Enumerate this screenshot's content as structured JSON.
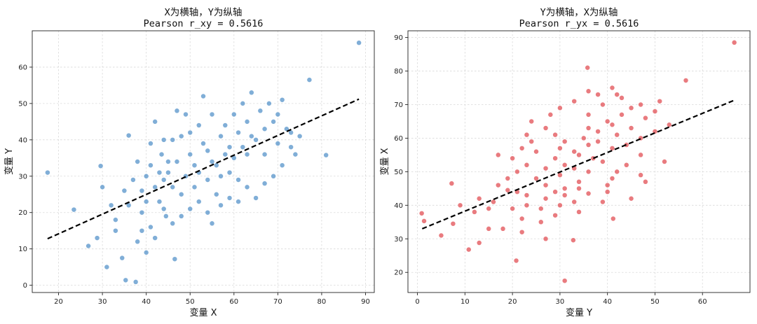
{
  "chart_data": [
    {
      "type": "scatter",
      "title": "X为横轴，Y为纵轴",
      "subtitle": "Pearson r_xy = 0.5616",
      "xlabel": "变量 X",
      "ylabel": "变量 Y",
      "xlim": [
        14,
        92
      ],
      "ylim": [
        -2,
        70
      ],
      "xticks": [
        20,
        30,
        40,
        50,
        60,
        70,
        80,
        90
      ],
      "yticks": [
        0,
        10,
        20,
        30,
        40,
        50,
        60
      ],
      "grid": true,
      "point_color": "#4f8fc7",
      "fit_line": {
        "x": [
          17.5,
          88.5
        ],
        "y": [
          12.8,
          51.2
        ],
        "color": "#000000"
      },
      "points": [
        [
          88.5,
          66.7
        ],
        [
          17.5,
          31.0
        ],
        [
          23.5,
          20.8
        ],
        [
          81.0,
          35.8
        ],
        [
          77.2,
          56.5
        ],
        [
          26.8,
          10.8
        ],
        [
          28.8,
          13.0
        ],
        [
          29.6,
          32.8
        ],
        [
          31.0,
          5.0
        ],
        [
          35.3,
          1.4
        ],
        [
          37.6,
          0.9
        ],
        [
          46.5,
          7.2
        ],
        [
          30.0,
          27.0
        ],
        [
          33.0,
          15.0
        ],
        [
          34.5,
          7.5
        ],
        [
          36.0,
          41.2
        ],
        [
          35.0,
          26.0
        ],
        [
          33.0,
          18.0
        ],
        [
          32.0,
          22.0
        ],
        [
          39.0,
          20.0
        ],
        [
          41.0,
          39.0
        ],
        [
          40.0,
          23.0
        ],
        [
          41.0,
          16.0
        ],
        [
          43.0,
          23.0
        ],
        [
          42.0,
          45.0
        ],
        [
          43.5,
          36.0
        ],
        [
          44.0,
          29.0
        ],
        [
          45.0,
          31.0
        ],
        [
          44.5,
          19.0
        ],
        [
          46.0,
          27.0
        ],
        [
          47.0,
          34.0
        ],
        [
          46.0,
          40.0
        ],
        [
          48.0,
          41.0
        ],
        [
          47.0,
          48.0
        ],
        [
          49.0,
          47.0
        ],
        [
          48.0,
          25.0
        ],
        [
          49.0,
          30.0
        ],
        [
          50.0,
          36.0
        ],
        [
          51.0,
          33.0
        ],
        [
          50.0,
          42.0
        ],
        [
          51.0,
          27.0
        ],
        [
          52.0,
          31.0
        ],
        [
          52.0,
          44.0
        ],
        [
          53.0,
          52.0
        ],
        [
          53.0,
          39.0
        ],
        [
          54.0,
          37.0
        ],
        [
          54.0,
          29.0
        ],
        [
          55.0,
          34.0
        ],
        [
          55.0,
          47.0
        ],
        [
          56.0,
          33.0
        ],
        [
          56.0,
          25.0
        ],
        [
          57.0,
          41.0
        ],
        [
          57.0,
          30.0
        ],
        [
          58.0,
          36.0
        ],
        [
          58.0,
          44.0
        ],
        [
          59.0,
          31.0
        ],
        [
          59.0,
          38.0
        ],
        [
          60.0,
          35.0
        ],
        [
          60.0,
          47.0
        ],
        [
          61.0,
          42.0
        ],
        [
          61.0,
          29.0
        ],
        [
          62.0,
          38.0
        ],
        [
          62.0,
          50.0
        ],
        [
          63.0,
          45.0
        ],
        [
          63.0,
          36.0
        ],
        [
          64.0,
          53.0
        ],
        [
          64.0,
          41.0
        ],
        [
          65.0,
          40.0
        ],
        [
          66.0,
          48.0
        ],
        [
          67.0,
          43.0
        ],
        [
          67.0,
          36.0
        ],
        [
          68.0,
          50.0
        ],
        [
          69.0,
          45.0
        ],
        [
          70.0,
          47.0
        ],
        [
          70.0,
          39.0
        ],
        [
          71.0,
          51.0
        ],
        [
          72.0,
          43.0
        ],
        [
          73.0,
          42.0
        ],
        [
          74.0,
          36.0
        ],
        [
          75.0,
          41.0
        ],
        [
          45.0,
          34.0
        ],
        [
          44.0,
          40.0
        ],
        [
          43.0,
          31.0
        ],
        [
          42.0,
          27.0
        ],
        [
          41.0,
          33.0
        ],
        [
          40.0,
          30.0
        ],
        [
          39.0,
          26.0
        ],
        [
          38.0,
          34.0
        ],
        [
          37.0,
          29.0
        ],
        [
          36.0,
          22.0
        ],
        [
          38.0,
          12.0
        ],
        [
          39.0,
          15.0
        ],
        [
          40.0,
          9.0
        ],
        [
          42.0,
          13.0
        ],
        [
          44.0,
          21.0
        ],
        [
          46.0,
          17.0
        ],
        [
          48.0,
          19.0
        ],
        [
          50.0,
          21.0
        ],
        [
          52.0,
          23.0
        ],
        [
          54.0,
          20.0
        ],
        [
          55.0,
          17.0
        ],
        [
          57.0,
          22.0
        ],
        [
          59.0,
          24.0
        ],
        [
          61.0,
          23.0
        ],
        [
          63.0,
          27.0
        ],
        [
          65.0,
          24.0
        ],
        [
          67.0,
          28.0
        ],
        [
          69.0,
          30.0
        ],
        [
          71.0,
          33.0
        ],
        [
          73.0,
          38.0
        ]
      ]
    },
    {
      "type": "scatter",
      "title": "Y为横轴，X为纵轴",
      "subtitle": "Pearson r_yx = 0.5616",
      "xlabel": "变量 Y",
      "ylabel": "变量 X",
      "xlim": [
        -2,
        70
      ],
      "ylim": [
        14,
        92
      ],
      "xticks": [
        0,
        10,
        20,
        30,
        40,
        50,
        60
      ],
      "yticks": [
        20,
        30,
        40,
        50,
        60,
        70,
        80,
        90
      ],
      "grid": true,
      "point_color": "#e0484e",
      "fit_line": {
        "x": [
          1.0,
          66.7
        ],
        "y": [
          33.0,
          71.3
        ],
        "color": "#000000"
      },
      "points": [
        [
          66.7,
          88.5
        ],
        [
          31.0,
          17.5
        ],
        [
          20.8,
          23.5
        ],
        [
          35.8,
          81.0
        ],
        [
          56.5,
          77.2
        ],
        [
          10.8,
          26.8
        ],
        [
          13.0,
          28.8
        ],
        [
          32.8,
          29.6
        ],
        [
          5.0,
          31.0
        ],
        [
          1.4,
          35.3
        ],
        [
          0.9,
          37.6
        ],
        [
          7.2,
          46.5
        ],
        [
          27.0,
          30.0
        ],
        [
          15.0,
          33.0
        ],
        [
          7.5,
          34.5
        ],
        [
          41.2,
          36.0
        ],
        [
          26.0,
          35.0
        ],
        [
          18.0,
          33.0
        ],
        [
          22.0,
          32.0
        ],
        [
          20.0,
          39.0
        ],
        [
          39.0,
          41.0
        ],
        [
          23.0,
          40.0
        ],
        [
          16.0,
          41.0
        ],
        [
          23.0,
          43.0
        ],
        [
          45.0,
          42.0
        ],
        [
          36.0,
          43.5
        ],
        [
          29.0,
          44.0
        ],
        [
          31.0,
          45.0
        ],
        [
          19.0,
          44.5
        ],
        [
          27.0,
          46.0
        ],
        [
          34.0,
          47.0
        ],
        [
          40.0,
          46.0
        ],
        [
          41.0,
          48.0
        ],
        [
          48.0,
          47.0
        ],
        [
          47.0,
          49.0
        ],
        [
          25.0,
          48.0
        ],
        [
          30.0,
          49.0
        ],
        [
          36.0,
          50.0
        ],
        [
          33.0,
          51.0
        ],
        [
          42.0,
          50.0
        ],
        [
          27.0,
          51.0
        ],
        [
          31.0,
          52.0
        ],
        [
          44.0,
          52.0
        ],
        [
          52.0,
          53.0
        ],
        [
          39.0,
          53.0
        ],
        [
          37.0,
          54.0
        ],
        [
          29.0,
          54.0
        ],
        [
          34.0,
          55.0
        ],
        [
          47.0,
          55.0
        ],
        [
          33.0,
          56.0
        ],
        [
          25.0,
          56.0
        ],
        [
          41.0,
          57.0
        ],
        [
          30.0,
          57.0
        ],
        [
          36.0,
          58.0
        ],
        [
          44.0,
          58.0
        ],
        [
          31.0,
          59.0
        ],
        [
          38.0,
          59.0
        ],
        [
          35.0,
          60.0
        ],
        [
          47.0,
          60.0
        ],
        [
          42.0,
          61.0
        ],
        [
          29.0,
          61.0
        ],
        [
          38.0,
          62.0
        ],
        [
          50.0,
          62.0
        ],
        [
          45.0,
          63.0
        ],
        [
          36.0,
          63.0
        ],
        [
          53.0,
          64.0
        ],
        [
          41.0,
          64.0
        ],
        [
          40.0,
          65.0
        ],
        [
          48.0,
          66.0
        ],
        [
          43.0,
          67.0
        ],
        [
          36.0,
          67.0
        ],
        [
          50.0,
          68.0
        ],
        [
          45.0,
          69.0
        ],
        [
          47.0,
          70.0
        ],
        [
          39.0,
          70.0
        ],
        [
          51.0,
          71.0
        ],
        [
          43.0,
          72.0
        ],
        [
          42.0,
          73.0
        ],
        [
          36.0,
          74.0
        ],
        [
          41.0,
          75.0
        ],
        [
          34.0,
          45.0
        ],
        [
          40.0,
          44.0
        ],
        [
          31.0,
          43.0
        ],
        [
          27.0,
          42.0
        ],
        [
          33.0,
          41.0
        ],
        [
          30.0,
          40.0
        ],
        [
          26.0,
          39.0
        ],
        [
          34.0,
          38.0
        ],
        [
          29.0,
          37.0
        ],
        [
          22.0,
          36.0
        ],
        [
          12.0,
          38.0
        ],
        [
          15.0,
          39.0
        ],
        [
          9.0,
          40.0
        ],
        [
          13.0,
          42.0
        ],
        [
          21.0,
          44.0
        ],
        [
          17.0,
          46.0
        ],
        [
          19.0,
          48.0
        ],
        [
          21.0,
          50.0
        ],
        [
          23.0,
          52.0
        ],
        [
          20.0,
          54.0
        ],
        [
          17.0,
          55.0
        ],
        [
          22.0,
          57.0
        ],
        [
          24.0,
          59.0
        ],
        [
          23.0,
          61.0
        ],
        [
          27.0,
          63.0
        ],
        [
          24.0,
          65.0
        ],
        [
          28.0,
          67.0
        ],
        [
          30.0,
          69.0
        ],
        [
          33.0,
          71.0
        ],
        [
          38.0,
          73.0
        ]
      ]
    }
  ]
}
